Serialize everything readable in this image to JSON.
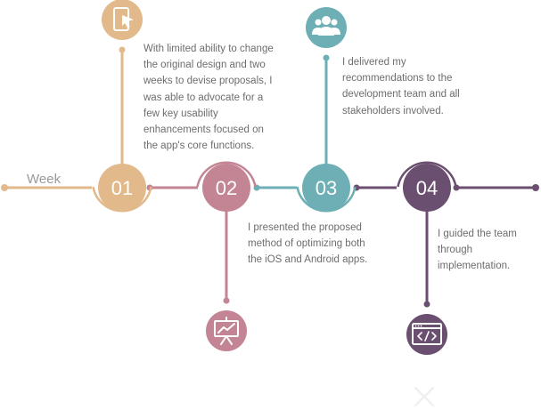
{
  "axis_label": "Week",
  "steps": [
    {
      "number": "01",
      "description": "With limited ability to change the original design and two weeks to devise proposals, I was able to advocate for a few key usability enhancements focused on the app's core functions.",
      "icon": "tablet-pointer-icon",
      "color": "#e2b98b"
    },
    {
      "number": "02",
      "description": "I presented the proposed method of optimizing both the iOS and Android apps.",
      "icon": "presentation-board-icon",
      "color": "#c38594"
    },
    {
      "number": "03",
      "description": "I delivered my recommendations to the development team and all stakeholders involved.",
      "icon": "team-group-icon",
      "color": "#6eafb5"
    },
    {
      "number": "04",
      "description": "I guided the team through implementation.",
      "icon": "code-window-icon",
      "color": "#6b4f70"
    }
  ]
}
